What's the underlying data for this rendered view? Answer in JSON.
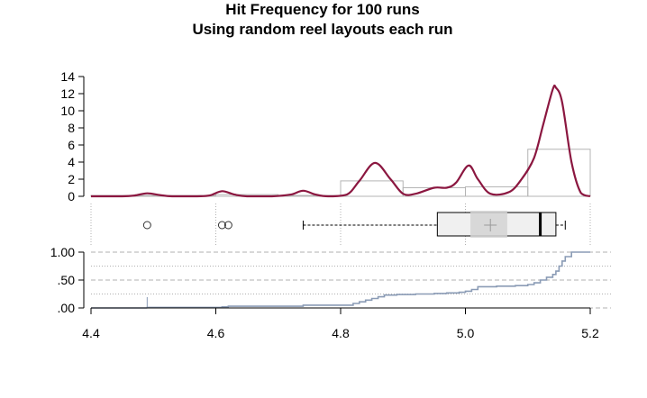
{
  "chart_data": {
    "type": "histogram-density-box-ecdf",
    "title": "Hit Frequency for 100 runs",
    "subtitle": "Using random reel layouts each run",
    "xlabel": "",
    "ylabel": "",
    "xlim": [
      4.4,
      5.2
    ],
    "x_ticks": [
      "4.4",
      "4.6",
      "4.8",
      "5.0",
      "5.2"
    ],
    "colors": {
      "density": "#8b1740",
      "histogram": "#b4b4b4",
      "box_fill": "#f0f0f0",
      "mean_marker": "#d3d3d3",
      "ecdf": "#8a9bb5",
      "grid": "#b0b0b0"
    },
    "histogram": {
      "ylim": [
        0,
        14
      ],
      "y_ticks": [
        "0",
        "2",
        "4",
        "6",
        "8",
        "10",
        "12",
        "14"
      ],
      "bins": [
        {
          "from": 4.4,
          "to": 4.5,
          "value": 0.1
        },
        {
          "from": 4.5,
          "to": 4.6,
          "value": 0.1
        },
        {
          "from": 4.6,
          "to": 4.7,
          "value": 0.2
        },
        {
          "from": 4.7,
          "to": 4.8,
          "value": 0.1
        },
        {
          "from": 4.8,
          "to": 4.9,
          "value": 1.8
        },
        {
          "from": 4.9,
          "to": 5.0,
          "value": 1.0
        },
        {
          "from": 5.0,
          "to": 5.1,
          "value": 1.1
        },
        {
          "from": 5.1,
          "to": 5.2,
          "value": 5.5
        }
      ]
    },
    "density": {
      "x": [
        4.4,
        4.45,
        4.47,
        4.49,
        4.51,
        4.53,
        4.57,
        4.59,
        4.61,
        4.63,
        4.65,
        4.69,
        4.72,
        4.74,
        4.76,
        4.78,
        4.81,
        4.83,
        4.855,
        4.88,
        4.9,
        4.92,
        4.95,
        4.97,
        4.985,
        5.005,
        5.02,
        5.04,
        5.07,
        5.09,
        5.11,
        5.125,
        5.14,
        5.145,
        5.155,
        5.17,
        5.185,
        5.2
      ],
      "y": [
        0,
        0,
        0.1,
        0.35,
        0.15,
        0,
        0,
        0.1,
        0.6,
        0.2,
        0,
        0,
        0.2,
        0.65,
        0.2,
        0,
        0.2,
        1.8,
        3.9,
        2.0,
        0.3,
        0.3,
        1.0,
        1.0,
        1.6,
        3.6,
        2.0,
        0.3,
        0.5,
        2.0,
        4.5,
        8.5,
        12.5,
        12.7,
        11.0,
        4.0,
        0.4,
        0
      ]
    },
    "boxplot": {
      "whisker_low": 4.74,
      "q1": 4.955,
      "median": 5.12,
      "q3": 5.145,
      "whisker_high": 5.16,
      "mean": 5.04,
      "mean_band": [
        5.008,
        5.067
      ],
      "outliers": [
        4.49,
        4.61,
        4.62
      ]
    },
    "ecdf": {
      "ylim": [
        0,
        1
      ],
      "y_ticks": [
        ".00",
        ".50",
        "1.00"
      ],
      "x": [
        4.49,
        4.61,
        4.62,
        4.74,
        4.82,
        4.83,
        4.84,
        4.85,
        4.86,
        4.87,
        4.89,
        4.92,
        4.95,
        4.97,
        4.99,
        5.0,
        5.01,
        5.02,
        5.05,
        5.08,
        5.1,
        5.11,
        5.12,
        5.13,
        5.14,
        5.145,
        5.15,
        5.155,
        5.16,
        5.17
      ],
      "y": [
        0.01,
        0.02,
        0.03,
        0.05,
        0.08,
        0.11,
        0.14,
        0.17,
        0.2,
        0.23,
        0.24,
        0.25,
        0.26,
        0.27,
        0.28,
        0.3,
        0.33,
        0.38,
        0.39,
        0.4,
        0.42,
        0.45,
        0.5,
        0.55,
        0.6,
        0.66,
        0.75,
        0.84,
        0.92,
        1.0
      ]
    }
  }
}
